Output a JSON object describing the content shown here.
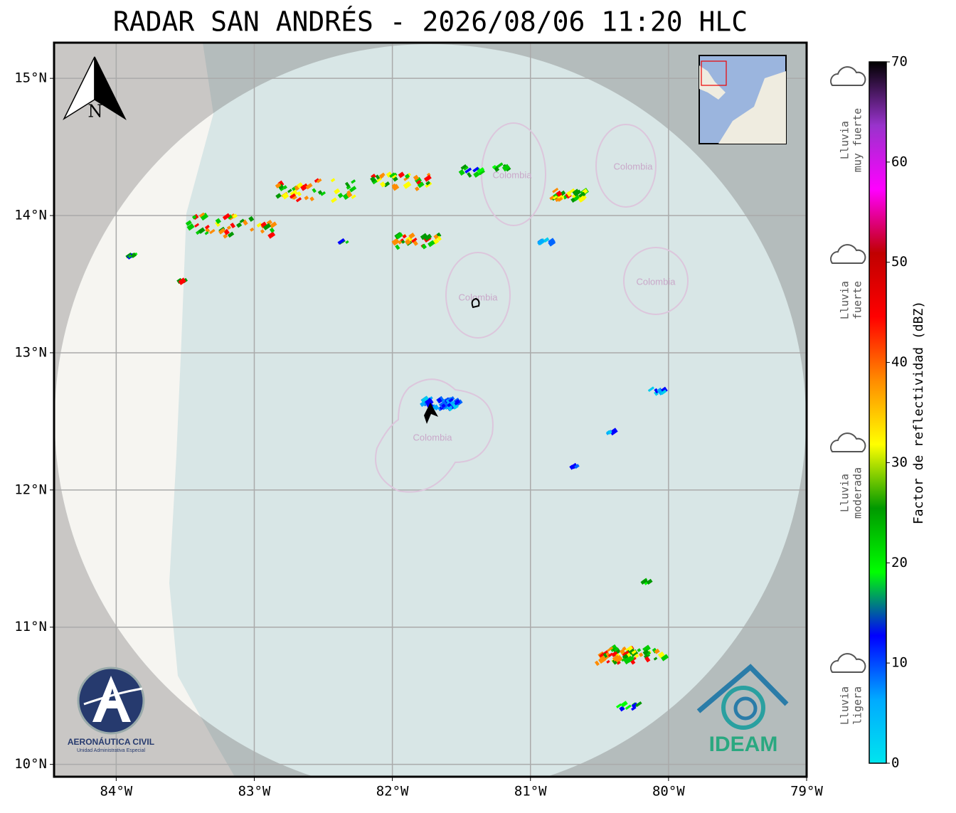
{
  "title": "RADAR SAN ANDRÉS - 2026/08/06 11:20 HLC",
  "map": {
    "xlim": [
      -84.45,
      -79
    ],
    "ylim": [
      9.91,
      15.26
    ],
    "xticks": [
      {
        "value": -84,
        "label": "84°W"
      },
      {
        "value": -83,
        "label": "83°W"
      },
      {
        "value": -82,
        "label": "82°W"
      },
      {
        "value": -81,
        "label": "81°W"
      },
      {
        "value": -80,
        "label": "80°W"
      },
      {
        "value": -79,
        "label": "79°W"
      }
    ],
    "yticks": [
      {
        "value": 10,
        "label": "10°N"
      },
      {
        "value": 11,
        "label": "11°N"
      },
      {
        "value": 12,
        "label": "12°N"
      },
      {
        "value": 13,
        "label": "13°N"
      },
      {
        "value": 14,
        "label": "14°N"
      },
      {
        "value": 15,
        "label": "15°N"
      }
    ],
    "grid": true,
    "north_label": "N",
    "place_labels": [
      "Colombia",
      "Colombia",
      "Colombia",
      "Colombia",
      "Colombia"
    ]
  },
  "colorbar": {
    "label": "Factor de reflectividad (dBZ)",
    "lim": [
      0,
      70
    ],
    "ticks": [
      0,
      10,
      20,
      30,
      40,
      50,
      60,
      70
    ],
    "colors": [
      "#00e5ee",
      "#00aaff",
      "#0000ff",
      "#00ff00",
      "#009900",
      "#ffff00",
      "#ff8c00",
      "#ff0000",
      "#c00000",
      "#ff00ff",
      "#9933cc",
      "#000000"
    ]
  },
  "intensity_labels": [
    [
      "Lluvia",
      "muy fuerte"
    ],
    [
      "Lluvia",
      "fuerte"
    ],
    [
      "Lluvia",
      "moderada"
    ],
    [
      "Lluvia",
      "ligera"
    ]
  ],
  "logos": {
    "left_name": "AERONÁUTICA CIVIL",
    "left_subtitle": "Unidad Administrativa Especial",
    "right_name": "IDEAM"
  }
}
